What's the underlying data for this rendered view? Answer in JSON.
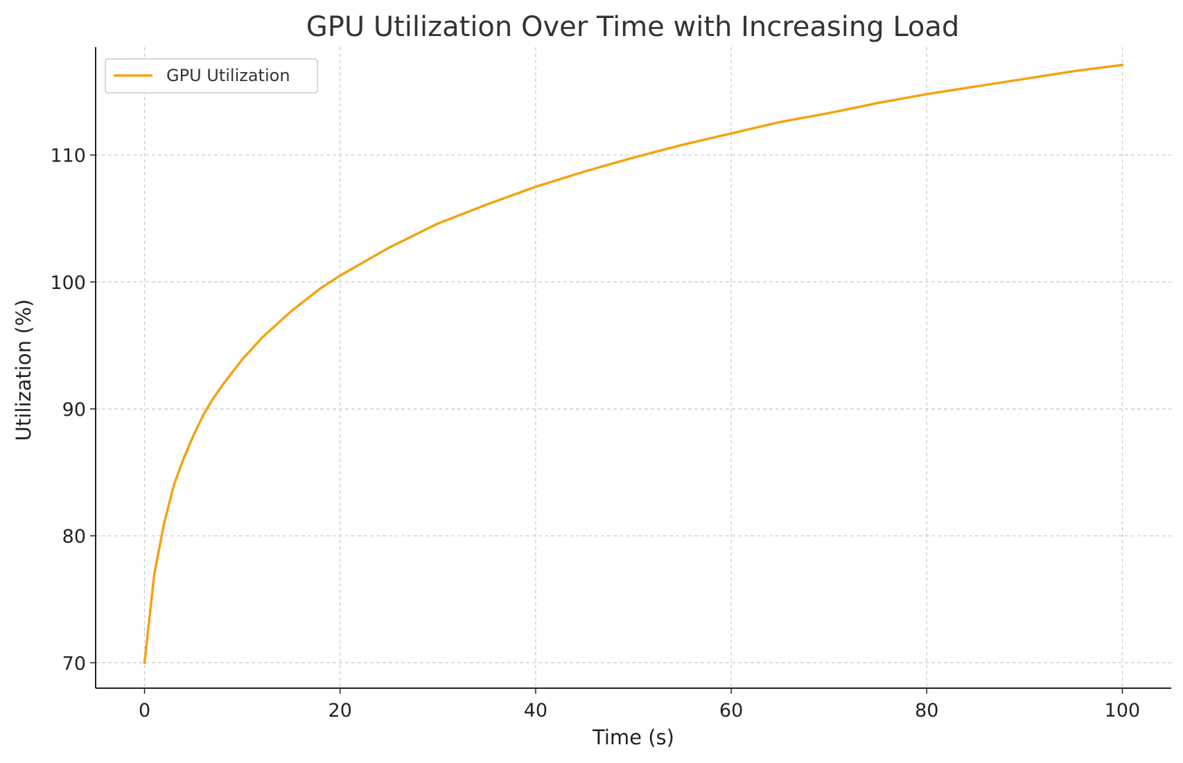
{
  "chart_data": {
    "type": "line",
    "title": "GPU Utilization Over Time with Increasing Load",
    "xlabel": "Time (s)",
    "ylabel": "Utilization (%)",
    "xlim": [
      -5,
      105
    ],
    "ylim": [
      68,
      118.5
    ],
    "xticks": [
      0,
      20,
      40,
      60,
      80,
      100
    ],
    "yticks": [
      70,
      80,
      90,
      100,
      110
    ],
    "grid": true,
    "legend": "top-left",
    "series": [
      {
        "name": "GPU Utilization",
        "color": "#f5a20f",
        "x": [
          0,
          1,
          2,
          3,
          4,
          5,
          6,
          7,
          8,
          10,
          12,
          15,
          18,
          20,
          25,
          30,
          35,
          40,
          45,
          50,
          55,
          60,
          65,
          70,
          75,
          80,
          85,
          90,
          95,
          100
        ],
        "y": [
          70.0,
          77.0,
          81.0,
          84.0,
          86.1,
          87.9,
          89.5,
          90.8,
          91.9,
          93.9,
          95.6,
          97.7,
          99.5,
          100.5,
          102.7,
          104.6,
          106.1,
          107.5,
          108.7,
          109.8,
          110.8,
          111.7,
          112.6,
          113.3,
          114.1,
          114.8,
          115.4,
          116.0,
          116.6,
          117.1
        ]
      }
    ]
  }
}
